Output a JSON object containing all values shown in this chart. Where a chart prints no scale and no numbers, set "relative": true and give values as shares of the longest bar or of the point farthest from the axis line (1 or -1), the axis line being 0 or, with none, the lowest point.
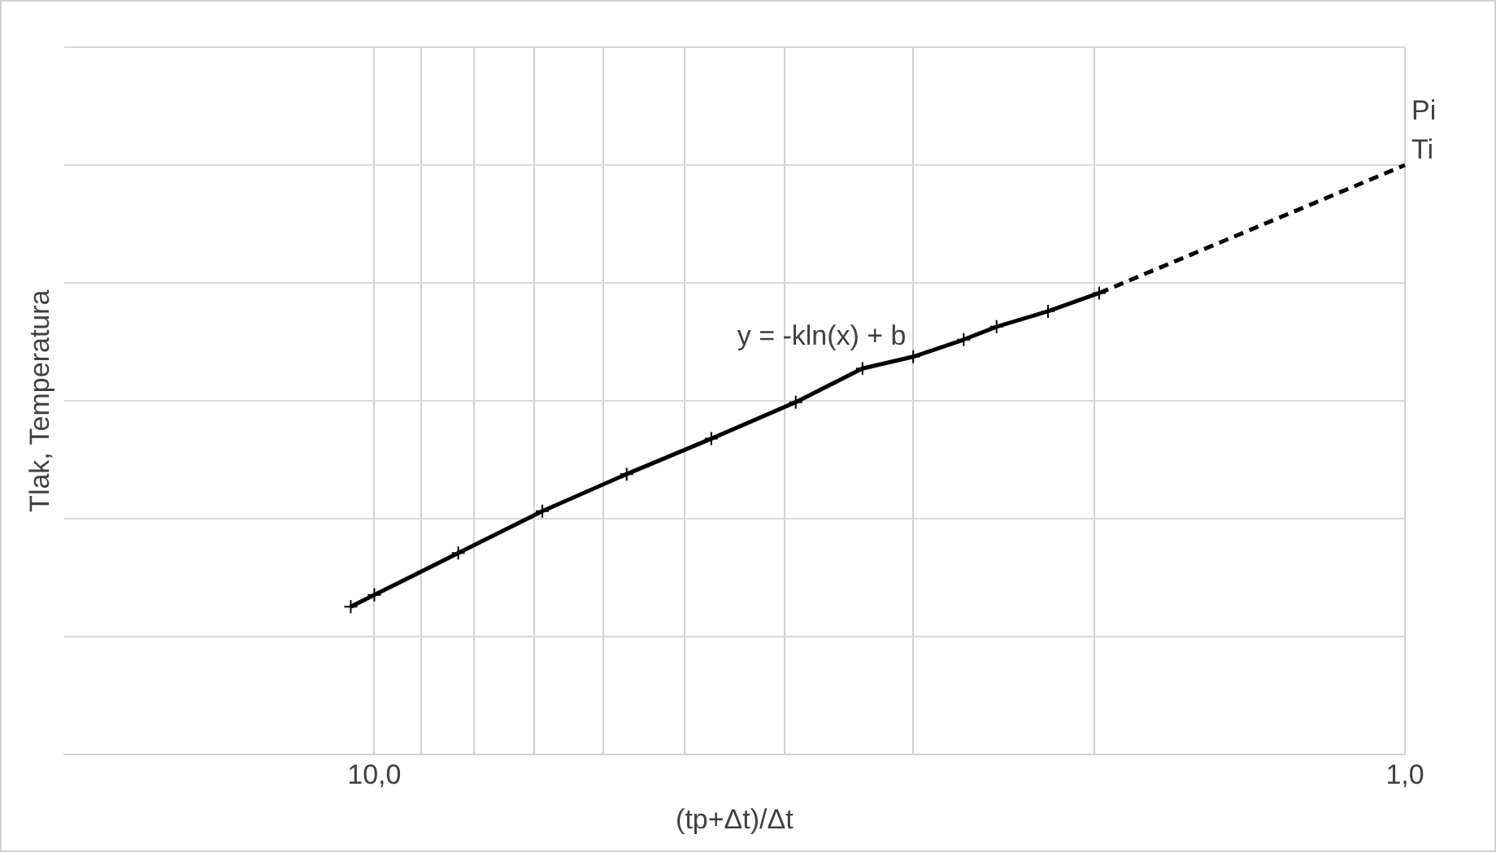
{
  "chart_data": {
    "type": "line",
    "relative": true,
    "xlabel": "(tp+Δt)/Δt",
    "ylabel": "Tlak, Temperatura",
    "log": "x",
    "xlim": [
      20,
      1
    ],
    "xticks": [
      {
        "value": 10,
        "label": "10,0"
      },
      {
        "value": 9,
        "label": null
      },
      {
        "value": 8,
        "label": null
      },
      {
        "value": 7,
        "label": null
      },
      {
        "value": 6,
        "label": null
      },
      {
        "value": 5,
        "label": null
      },
      {
        "value": 4,
        "label": null
      },
      {
        "value": 3,
        "label": null
      },
      {
        "value": 2,
        "label": null
      },
      {
        "value": 1,
        "label": "1,0"
      }
    ],
    "grid": true,
    "legend": false,
    "series": [
      {
        "color": "#000000",
        "marker": "cross",
        "line_style": "solid",
        "x": [
          10.54,
          10,
          8.29,
          6.87,
          5.69,
          4.71,
          3.9,
          3.36,
          3,
          2.68,
          2.49,
          2.22,
          1.98
        ],
        "values": [
          0.251,
          0.271,
          0.342,
          0.413,
          0.476,
          0.536,
          0.598,
          0.655,
          0.675,
          0.704,
          0.726,
          0.752,
          0.783
        ]
      },
      {
        "color": "#000000",
        "marker": "none",
        "line_style": "dashed",
        "x": [
          1.98,
          1
        ],
        "values": [
          0.783,
          1
        ]
      }
    ],
    "annotations": [
      "y = -kln(x) + b",
      "Pi",
      "Ti"
    ]
  }
}
